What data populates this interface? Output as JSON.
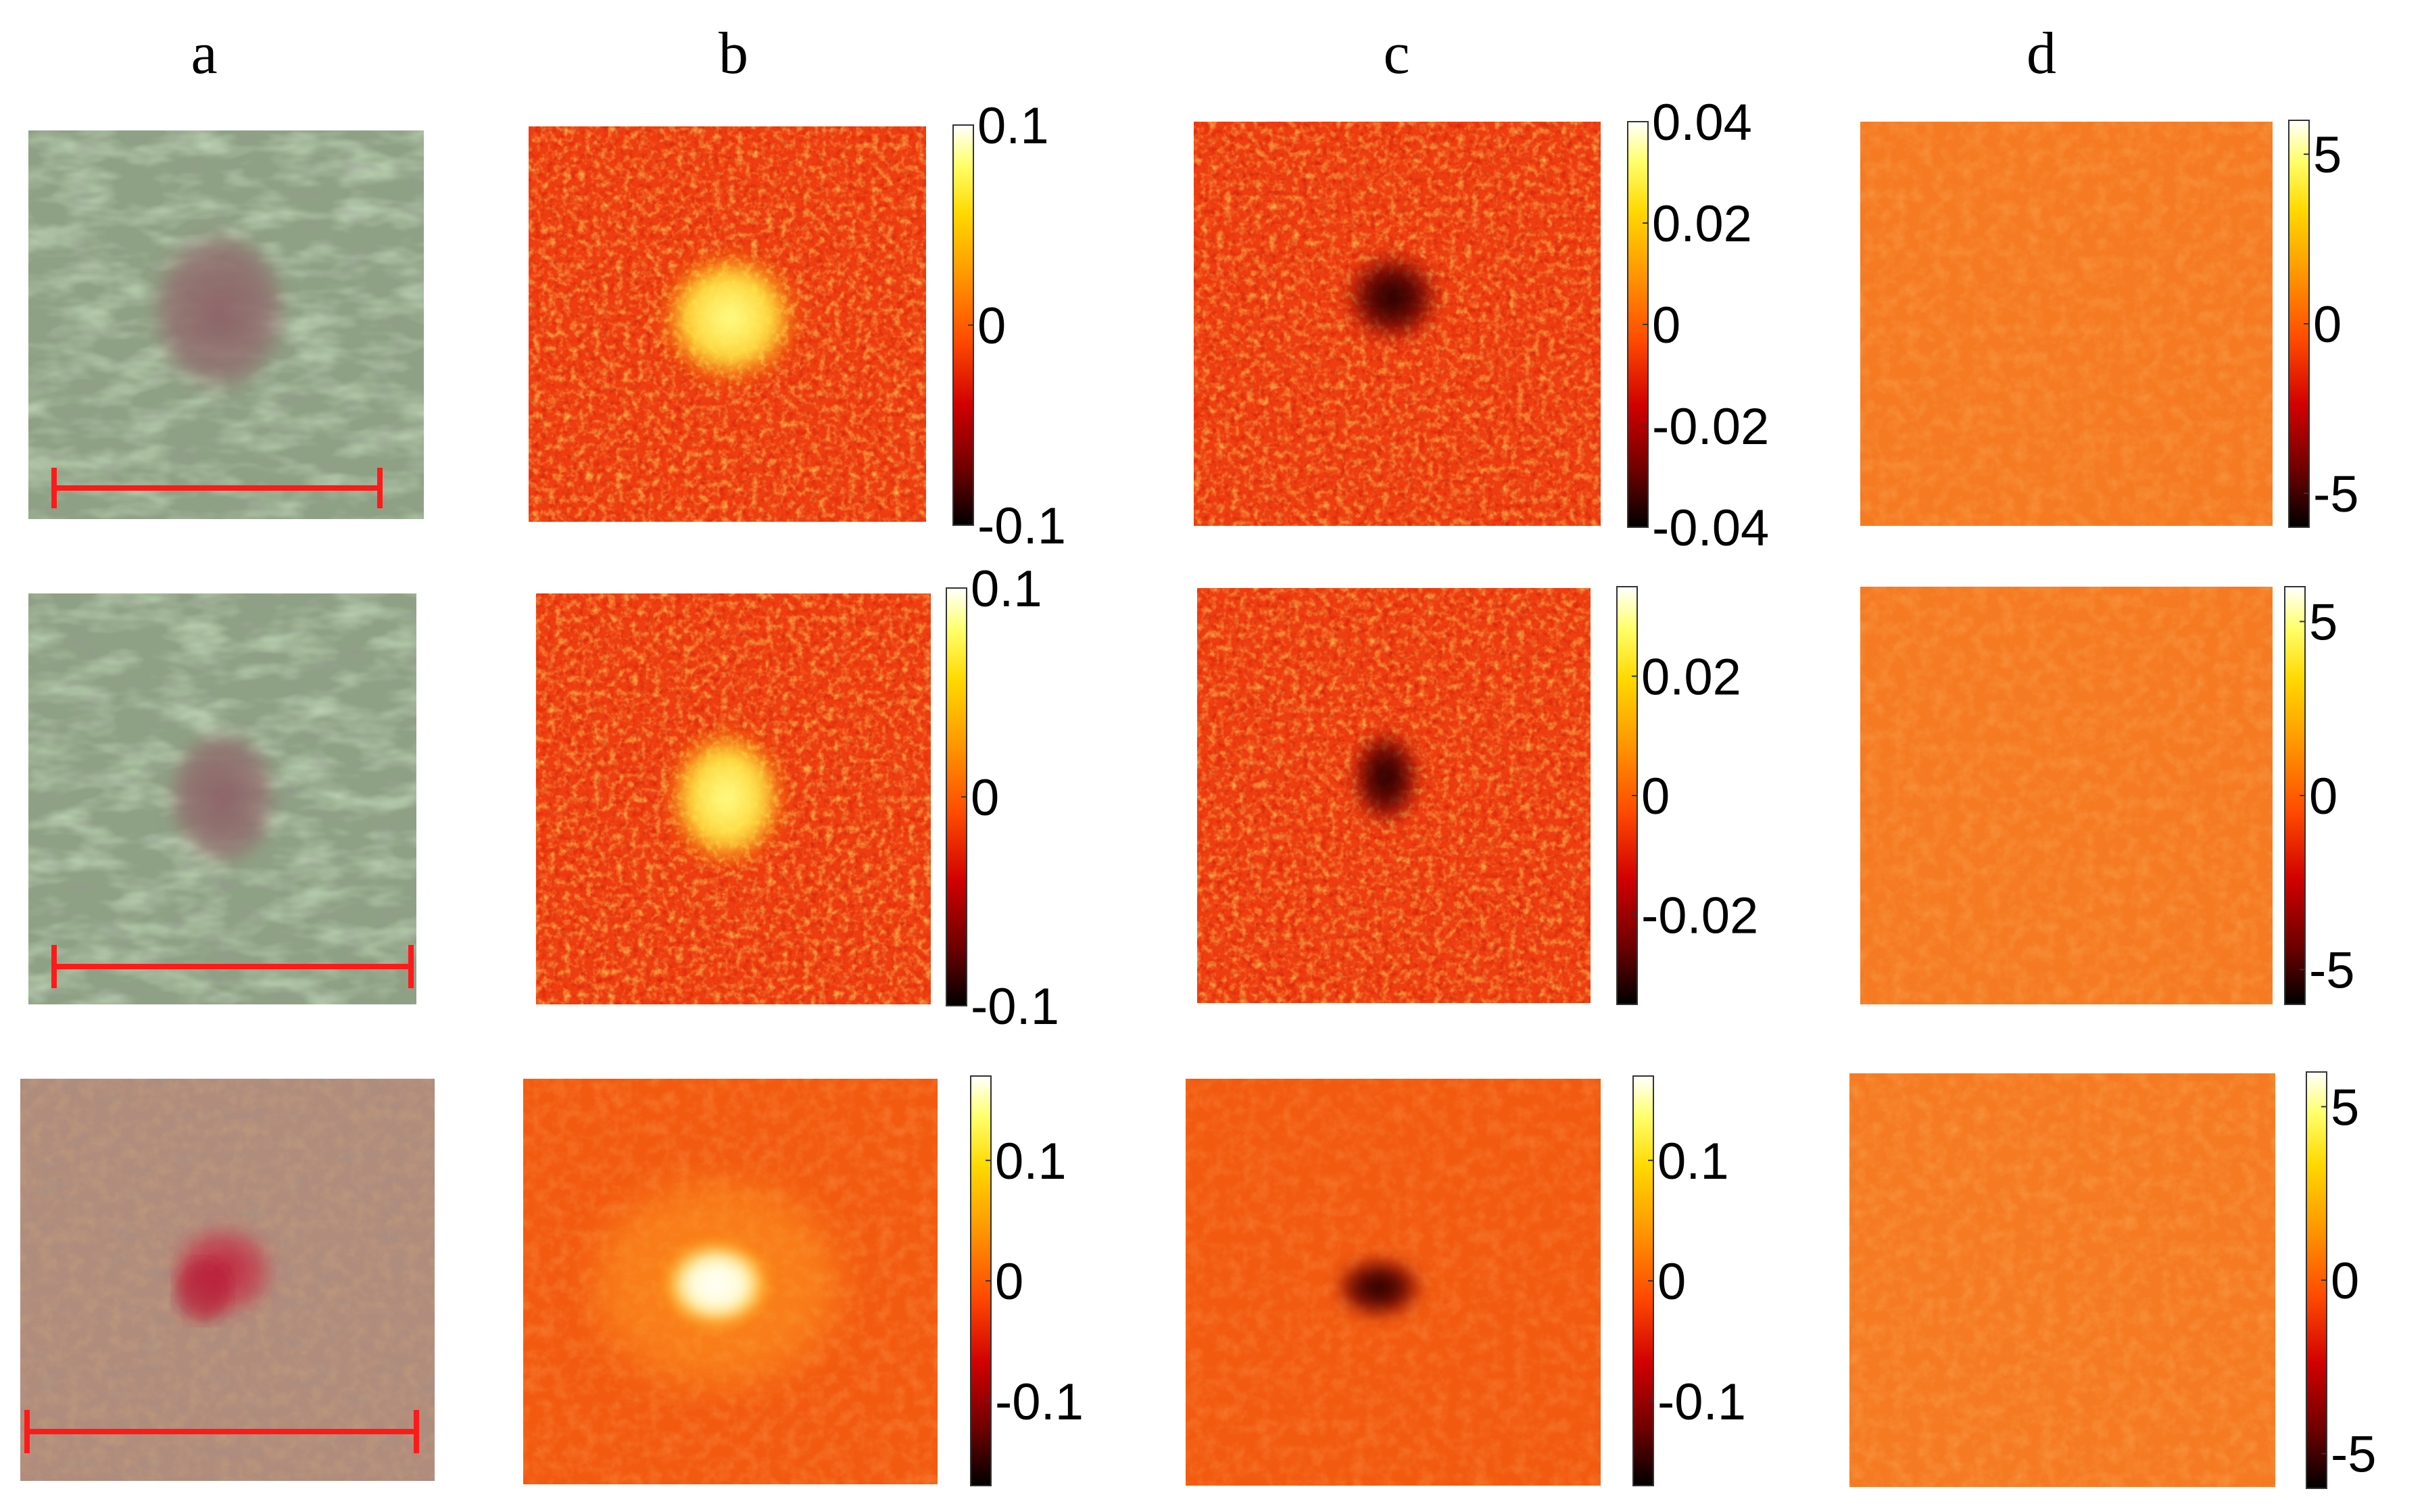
{
  "column_labels": [
    "a",
    "b",
    "c",
    "d"
  ],
  "colors": {
    "scale_bar": "#ff1a1a",
    "skin_rows_1_2": "#8fa184",
    "skin_row_3": "#b08c7c",
    "lesion_rows_1_2": "#8f6b6e",
    "lesion_row_3": "#c4283f",
    "map_background_b_c": "#ee3d10",
    "map_background_d": "#f57a22",
    "colormap": [
      "#000000",
      "#6e0000",
      "#d10000",
      "#ff4a00",
      "#ff9500",
      "#ffd900",
      "#ffff6a",
      "#ffffff"
    ]
  },
  "rows": [
    {
      "b_colorbar": {
        "min": -0.1,
        "max": 0.1,
        "ticks": [
          "0.1",
          "0",
          "-0.1"
        ],
        "tick_values": [
          0.1,
          0,
          -0.1
        ]
      },
      "c_colorbar": {
        "min": -0.04,
        "max": 0.04,
        "ticks": [
          "0.04",
          "0.02",
          "0",
          "-0.02",
          "-0.04"
        ],
        "tick_values": [
          0.04,
          0.02,
          0,
          -0.02,
          -0.04
        ]
      },
      "d_colorbar": {
        "min": -6,
        "max": 6,
        "ticks": [
          "5",
          "0",
          "-5"
        ],
        "tick_values": [
          5,
          0,
          -5
        ]
      }
    },
    {
      "b_colorbar": {
        "min": -0.1,
        "max": 0.1,
        "ticks": [
          "0.1",
          "0",
          "-0.1"
        ],
        "tick_values": [
          0.1,
          0,
          -0.1
        ]
      },
      "c_colorbar": {
        "min": -0.035,
        "max": 0.035,
        "ticks": [
          "0.02",
          "0",
          "-0.02"
        ],
        "tick_values": [
          0.02,
          0,
          -0.02
        ]
      },
      "d_colorbar": {
        "min": -6,
        "max": 6,
        "ticks": [
          "5",
          "0",
          "-5"
        ],
        "tick_values": [
          5,
          0,
          -5
        ]
      }
    },
    {
      "b_colorbar": {
        "min": -0.17,
        "max": 0.17,
        "ticks": [
          "0.1",
          "0",
          "-0.1"
        ],
        "tick_values": [
          0.1,
          0,
          -0.1
        ]
      },
      "c_colorbar": {
        "min": -0.17,
        "max": 0.17,
        "ticks": [
          "0.1",
          "0",
          "-0.1"
        ],
        "tick_values": [
          0.1,
          0,
          -0.1
        ]
      },
      "d_colorbar": {
        "min": -6,
        "max": 6,
        "ticks": [
          "5",
          "0",
          "-5"
        ],
        "tick_values": [
          5,
          0,
          -5
        ]
      }
    }
  ]
}
